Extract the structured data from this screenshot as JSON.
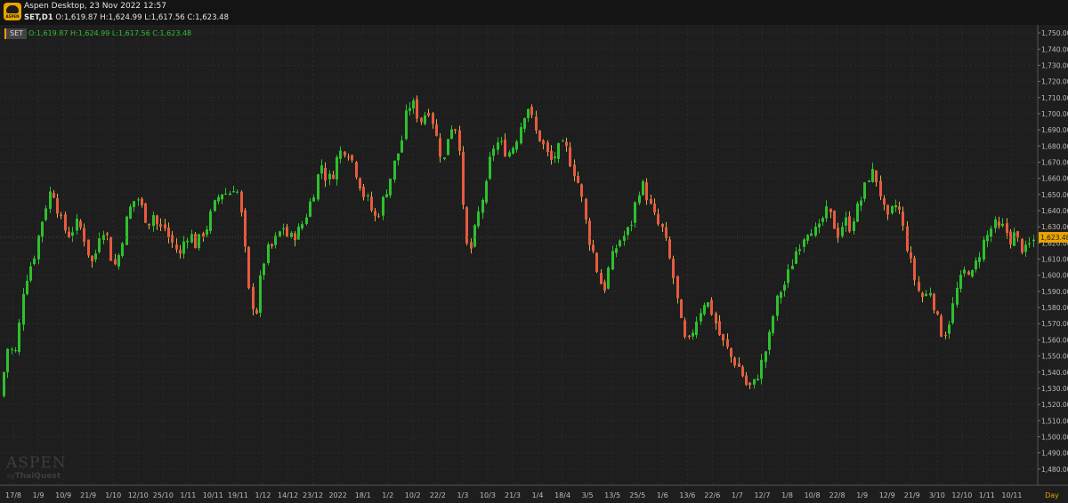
{
  "window": {
    "title": "Aspen Desktop, 23 Nov 2022 12:57"
  },
  "symbol_bar": {
    "symbol": "SET,D1",
    "ohlc": "O:1,619.87 H:1,624.99 L:1,617.56 C:1,623.48"
  },
  "legend": {
    "tag": "SET",
    "ohlc": "O:1,619.87  H:1,624.99  L:1,617.56  C:1,623.48"
  },
  "watermark": {
    "brand": "ASPEN",
    "by": "by",
    "vendor": "ThaiQuest"
  },
  "colors": {
    "up": "#2ec02e",
    "down": "#e85a40",
    "wick_up": "#2ec02e",
    "wick_down": "#d9b040",
    "current_price": "#e8a400",
    "grid": "#2b2b2b",
    "axis_text": "#bcbcbc"
  },
  "chart_data": {
    "type": "candlestick",
    "title": "",
    "xlabel": "",
    "ylabel": "",
    "ylim": [
      1470,
      1755
    ],
    "grid": true,
    "y_ticks": [
      1480,
      1490,
      1500,
      1510,
      1520,
      1530,
      1540,
      1550,
      1560,
      1570,
      1580,
      1590,
      1600,
      1610,
      1620,
      1630,
      1640,
      1650,
      1660,
      1670,
      1680,
      1690,
      1700,
      1710,
      1720,
      1730,
      1740,
      1750
    ],
    "x_tick_labels": [
      "17/8",
      "1/9",
      "10/9",
      "21/9",
      "1/10",
      "12/10",
      "25/10",
      "1/11",
      "10/11",
      "19/11",
      "1/12",
      "14/12",
      "23/12",
      "2022",
      "18/1",
      "1/2",
      "10/2",
      "22/2",
      "1/3",
      "10/3",
      "21/3",
      "1/4",
      "18/4",
      "3/5",
      "13/5",
      "25/5",
      "1/6",
      "13/6",
      "22/6",
      "1/7",
      "12/7",
      "1/8",
      "10/8",
      "22/8",
      "1/9",
      "12/9",
      "21/9",
      "3/10",
      "12/10",
      "1/11",
      "10/11",
      "Day"
    ],
    "current_price": 1623.48,
    "current_price_label": "1,623.48",
    "last_candle": {
      "open": 1619.87,
      "high": 1624.99,
      "low": 1617.56,
      "close": 1623.48
    },
    "close_path": [
      [
        0,
        1525
      ],
      [
        8,
        1555
      ],
      [
        18,
        1552
      ],
      [
        25,
        1590
      ],
      [
        30,
        1600
      ],
      [
        38,
        1612
      ],
      [
        45,
        1630
      ],
      [
        52,
        1645
      ],
      [
        58,
        1655
      ],
      [
        65,
        1640
      ],
      [
        70,
        1630
      ],
      [
        78,
        1625
      ],
      [
        85,
        1632
      ],
      [
        92,
        1628
      ],
      [
        98,
        1615
      ],
      [
        105,
        1605
      ],
      [
        110,
        1625
      ],
      [
        118,
        1630
      ],
      [
        124,
        1612
      ],
      [
        130,
        1605
      ],
      [
        136,
        1620
      ],
      [
        142,
        1635
      ],
      [
        148,
        1645
      ],
      [
        154,
        1648
      ],
      [
        160,
        1640
      ],
      [
        166,
        1632
      ],
      [
        172,
        1638
      ],
      [
        178,
        1628
      ],
      [
        184,
        1630
      ],
      [
        190,
        1622
      ],
      [
        196,
        1618
      ],
      [
        202,
        1612
      ],
      [
        208,
        1625
      ],
      [
        214,
        1625
      ],
      [
        220,
        1618
      ],
      [
        226,
        1625
      ],
      [
        232,
        1630
      ],
      [
        238,
        1640
      ],
      [
        244,
        1648
      ],
      [
        250,
        1652
      ],
      [
        256,
        1650
      ],
      [
        262,
        1655
      ],
      [
        268,
        1650
      ],
      [
        274,
        1620
      ],
      [
        280,
        1585
      ],
      [
        288,
        1578
      ],
      [
        294,
        1605
      ],
      [
        300,
        1615
      ],
      [
        306,
        1618
      ],
      [
        312,
        1625
      ],
      [
        318,
        1630
      ],
      [
        324,
        1622
      ],
      [
        330,
        1625
      ],
      [
        336,
        1628
      ],
      [
        342,
        1635
      ],
      [
        348,
        1645
      ],
      [
        354,
        1655
      ],
      [
        360,
        1670
      ],
      [
        366,
        1660
      ],
      [
        372,
        1660
      ],
      [
        378,
        1672
      ],
      [
        384,
        1678
      ],
      [
        390,
        1678
      ],
      [
        396,
        1670
      ],
      [
        402,
        1660
      ],
      [
        408,
        1650
      ],
      [
        414,
        1645
      ],
      [
        420,
        1635
      ],
      [
        426,
        1640
      ],
      [
        432,
        1650
      ],
      [
        438,
        1660
      ],
      [
        444,
        1672
      ],
      [
        450,
        1680
      ],
      [
        456,
        1700
      ],
      [
        462,
        1708
      ],
      [
        468,
        1700
      ],
      [
        474,
        1695
      ],
      [
        480,
        1705
      ],
      [
        486,
        1695
      ],
      [
        492,
        1680
      ],
      [
        498,
        1670
      ],
      [
        504,
        1690
      ],
      [
        510,
        1695
      ],
      [
        516,
        1680
      ],
      [
        522,
        1620
      ],
      [
        528,
        1615
      ],
      [
        534,
        1630
      ],
      [
        540,
        1645
      ],
      [
        546,
        1655
      ],
      [
        552,
        1678
      ],
      [
        558,
        1682
      ],
      [
        564,
        1680
      ],
      [
        570,
        1675
      ],
      [
        576,
        1680
      ],
      [
        582,
        1688
      ],
      [
        588,
        1700
      ],
      [
        594,
        1705
      ],
      [
        600,
        1690
      ],
      [
        606,
        1685
      ],
      [
        612,
        1678
      ],
      [
        618,
        1670
      ],
      [
        624,
        1675
      ],
      [
        630,
        1680
      ],
      [
        636,
        1678
      ],
      [
        642,
        1668
      ],
      [
        648,
        1660
      ],
      [
        654,
        1645
      ],
      [
        660,
        1625
      ],
      [
        666,
        1615
      ],
      [
        672,
        1600
      ],
      [
        678,
        1590
      ],
      [
        684,
        1605
      ],
      [
        690,
        1615
      ],
      [
        696,
        1622
      ],
      [
        702,
        1625
      ],
      [
        708,
        1630
      ],
      [
        714,
        1645
      ],
      [
        720,
        1658
      ],
      [
        726,
        1650
      ],
      [
        732,
        1640
      ],
      [
        738,
        1632
      ],
      [
        744,
        1628
      ],
      [
        750,
        1615
      ],
      [
        756,
        1600
      ],
      [
        762,
        1580
      ],
      [
        768,
        1560
      ],
      [
        774,
        1558
      ],
      [
        780,
        1570
      ],
      [
        786,
        1578
      ],
      [
        792,
        1585
      ],
      [
        798,
        1580
      ],
      [
        804,
        1570
      ],
      [
        810,
        1560
      ],
      [
        816,
        1555
      ],
      [
        822,
        1548
      ],
      [
        828,
        1545
      ],
      [
        834,
        1538
      ],
      [
        840,
        1530
      ],
      [
        846,
        1532
      ],
      [
        852,
        1540
      ],
      [
        858,
        1550
      ],
      [
        864,
        1562
      ],
      [
        870,
        1580
      ],
      [
        876,
        1590
      ],
      [
        882,
        1595
      ],
      [
        888,
        1605
      ],
      [
        894,
        1615
      ],
      [
        900,
        1622
      ],
      [
        906,
        1628
      ],
      [
        912,
        1630
      ],
      [
        918,
        1625
      ],
      [
        924,
        1635
      ],
      [
        930,
        1640
      ],
      [
        936,
        1632
      ],
      [
        942,
        1625
      ],
      [
        948,
        1635
      ],
      [
        954,
        1630
      ],
      [
        960,
        1638
      ],
      [
        966,
        1645
      ],
      [
        972,
        1655
      ],
      [
        978,
        1665
      ],
      [
        984,
        1660
      ],
      [
        990,
        1648
      ],
      [
        996,
        1632
      ],
      [
        1002,
        1640
      ],
      [
        1008,
        1645
      ],
      [
        1014,
        1630
      ],
      [
        1020,
        1615
      ],
      [
        1026,
        1600
      ],
      [
        1032,
        1590
      ],
      [
        1038,
        1585
      ],
      [
        1044,
        1592
      ],
      [
        1050,
        1580
      ],
      [
        1056,
        1565
      ],
      [
        1062,
        1565
      ],
      [
        1068,
        1575
      ],
      [
        1074,
        1590
      ],
      [
        1080,
        1598
      ],
      [
        1086,
        1605
      ],
      [
        1092,
        1600
      ],
      [
        1098,
        1610
      ],
      [
        1104,
        1620
      ],
      [
        1110,
        1625
      ],
      [
        1116,
        1632
      ],
      [
        1122,
        1628
      ],
      [
        1128,
        1630
      ],
      [
        1134,
        1622
      ],
      [
        1140,
        1625
      ],
      [
        1146,
        1618
      ],
      [
        1152,
        1615
      ],
      [
        1158,
        1620
      ],
      [
        1164,
        1623.48
      ]
    ]
  }
}
